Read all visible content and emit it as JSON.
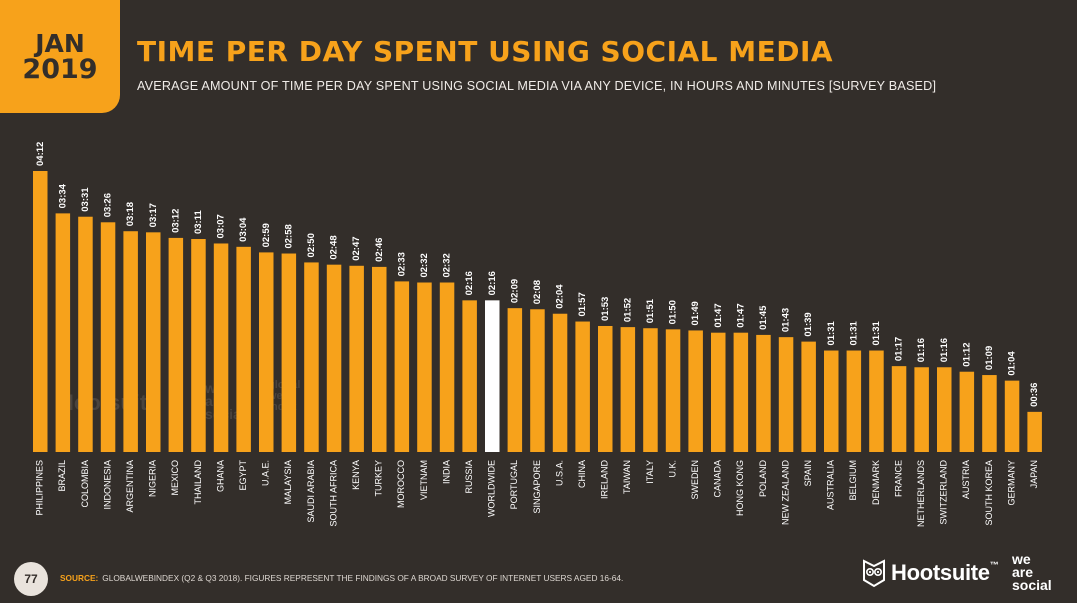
{
  "header": {
    "date_month": "JAN",
    "date_year": "2019",
    "title": "TIME PER DAY SPENT USING SOCIAL MEDIA",
    "subtitle": "AVERAGE AMOUNT OF TIME PER DAY SPENT USING SOCIAL MEDIA VIA ANY DEVICE, IN HOURS AND MINUTES [SURVEY BASED]"
  },
  "colors": {
    "background": "#332e2a",
    "bar": "#f7a21b",
    "highlight_bar": "#ffffff",
    "accent": "#f7a21b"
  },
  "chart_data": {
    "type": "bar",
    "categories": [
      "PHILIPPINES",
      "BRAZIL",
      "COLOMBIA",
      "INDONESIA",
      "ARGENTINA",
      "NIGERIA",
      "MEXICO",
      "THAILAND",
      "GHANA",
      "EGYPT",
      "U.A.E.",
      "MALAYSIA",
      "SAUDI ARABIA",
      "SOUTH AFRICA",
      "KENYA",
      "TURKEY",
      "MOROCCO",
      "VIETNAM",
      "INDIA",
      "RUSSIA",
      "WORLDWIDE",
      "PORTUGAL",
      "SINGAPORE",
      "U.S.A.",
      "CHINA",
      "IRELAND",
      "TAIWAN",
      "ITALY",
      "U.K.",
      "SWEDEN",
      "CANADA",
      "HONG KONG",
      "POLAND",
      "NEW ZEALAND",
      "SPAIN",
      "AUSTRALIA",
      "BELGIUM",
      "DENMARK",
      "FRANCE",
      "NETHERLANDS",
      "SWITZERLAND",
      "AUSTRIA",
      "SOUTH KOREA",
      "GERMANY",
      "JAPAN"
    ],
    "labels": [
      "04:12",
      "03:34",
      "03:31",
      "03:26",
      "03:18",
      "03:17",
      "03:12",
      "03:11",
      "03:07",
      "03:04",
      "02:59",
      "02:58",
      "02:50",
      "02:48",
      "02:47",
      "02:46",
      "02:33",
      "02:32",
      "02:32",
      "02:16",
      "02:16",
      "02:09",
      "02:08",
      "02:04",
      "01:57",
      "01:53",
      "01:52",
      "01:51",
      "01:50",
      "01:49",
      "01:47",
      "01:47",
      "01:45",
      "01:43",
      "01:39",
      "01:31",
      "01:31",
      "01:31",
      "01:17",
      "01:16",
      "01:16",
      "01:12",
      "01:09",
      "01:04",
      "00:36"
    ],
    "values": [
      252,
      214,
      211,
      206,
      198,
      197,
      192,
      191,
      187,
      184,
      179,
      178,
      170,
      168,
      167,
      166,
      153,
      152,
      152,
      136,
      136,
      129,
      128,
      124,
      117,
      113,
      112,
      111,
      110,
      109,
      107,
      107,
      105,
      103,
      99,
      91,
      91,
      91,
      77,
      76,
      76,
      72,
      69,
      64,
      36
    ],
    "unit": "minutes",
    "highlight": "WORLDWIDE",
    "ylim": [
      0,
      252
    ],
    "grid": false
  },
  "watermarks": {
    "hootsuite": "Hootsuite",
    "wearesocial": [
      "we",
      "are",
      "social"
    ],
    "gwi": [
      "global",
      "web",
      "index"
    ]
  },
  "footer": {
    "page_number": "77",
    "source_label": "SOURCE:",
    "source_text": "GLOBALWEBINDEX (Q2 & Q3 2018). FIGURES REPRESENT THE FINDINGS OF A BROAD SURVEY OF INTERNET USERS AGED 16-64.",
    "brand_hootsuite": "Hootsuite",
    "brand_trademark": "™",
    "brand_wearesocial": [
      "we",
      "are",
      "social"
    ]
  }
}
